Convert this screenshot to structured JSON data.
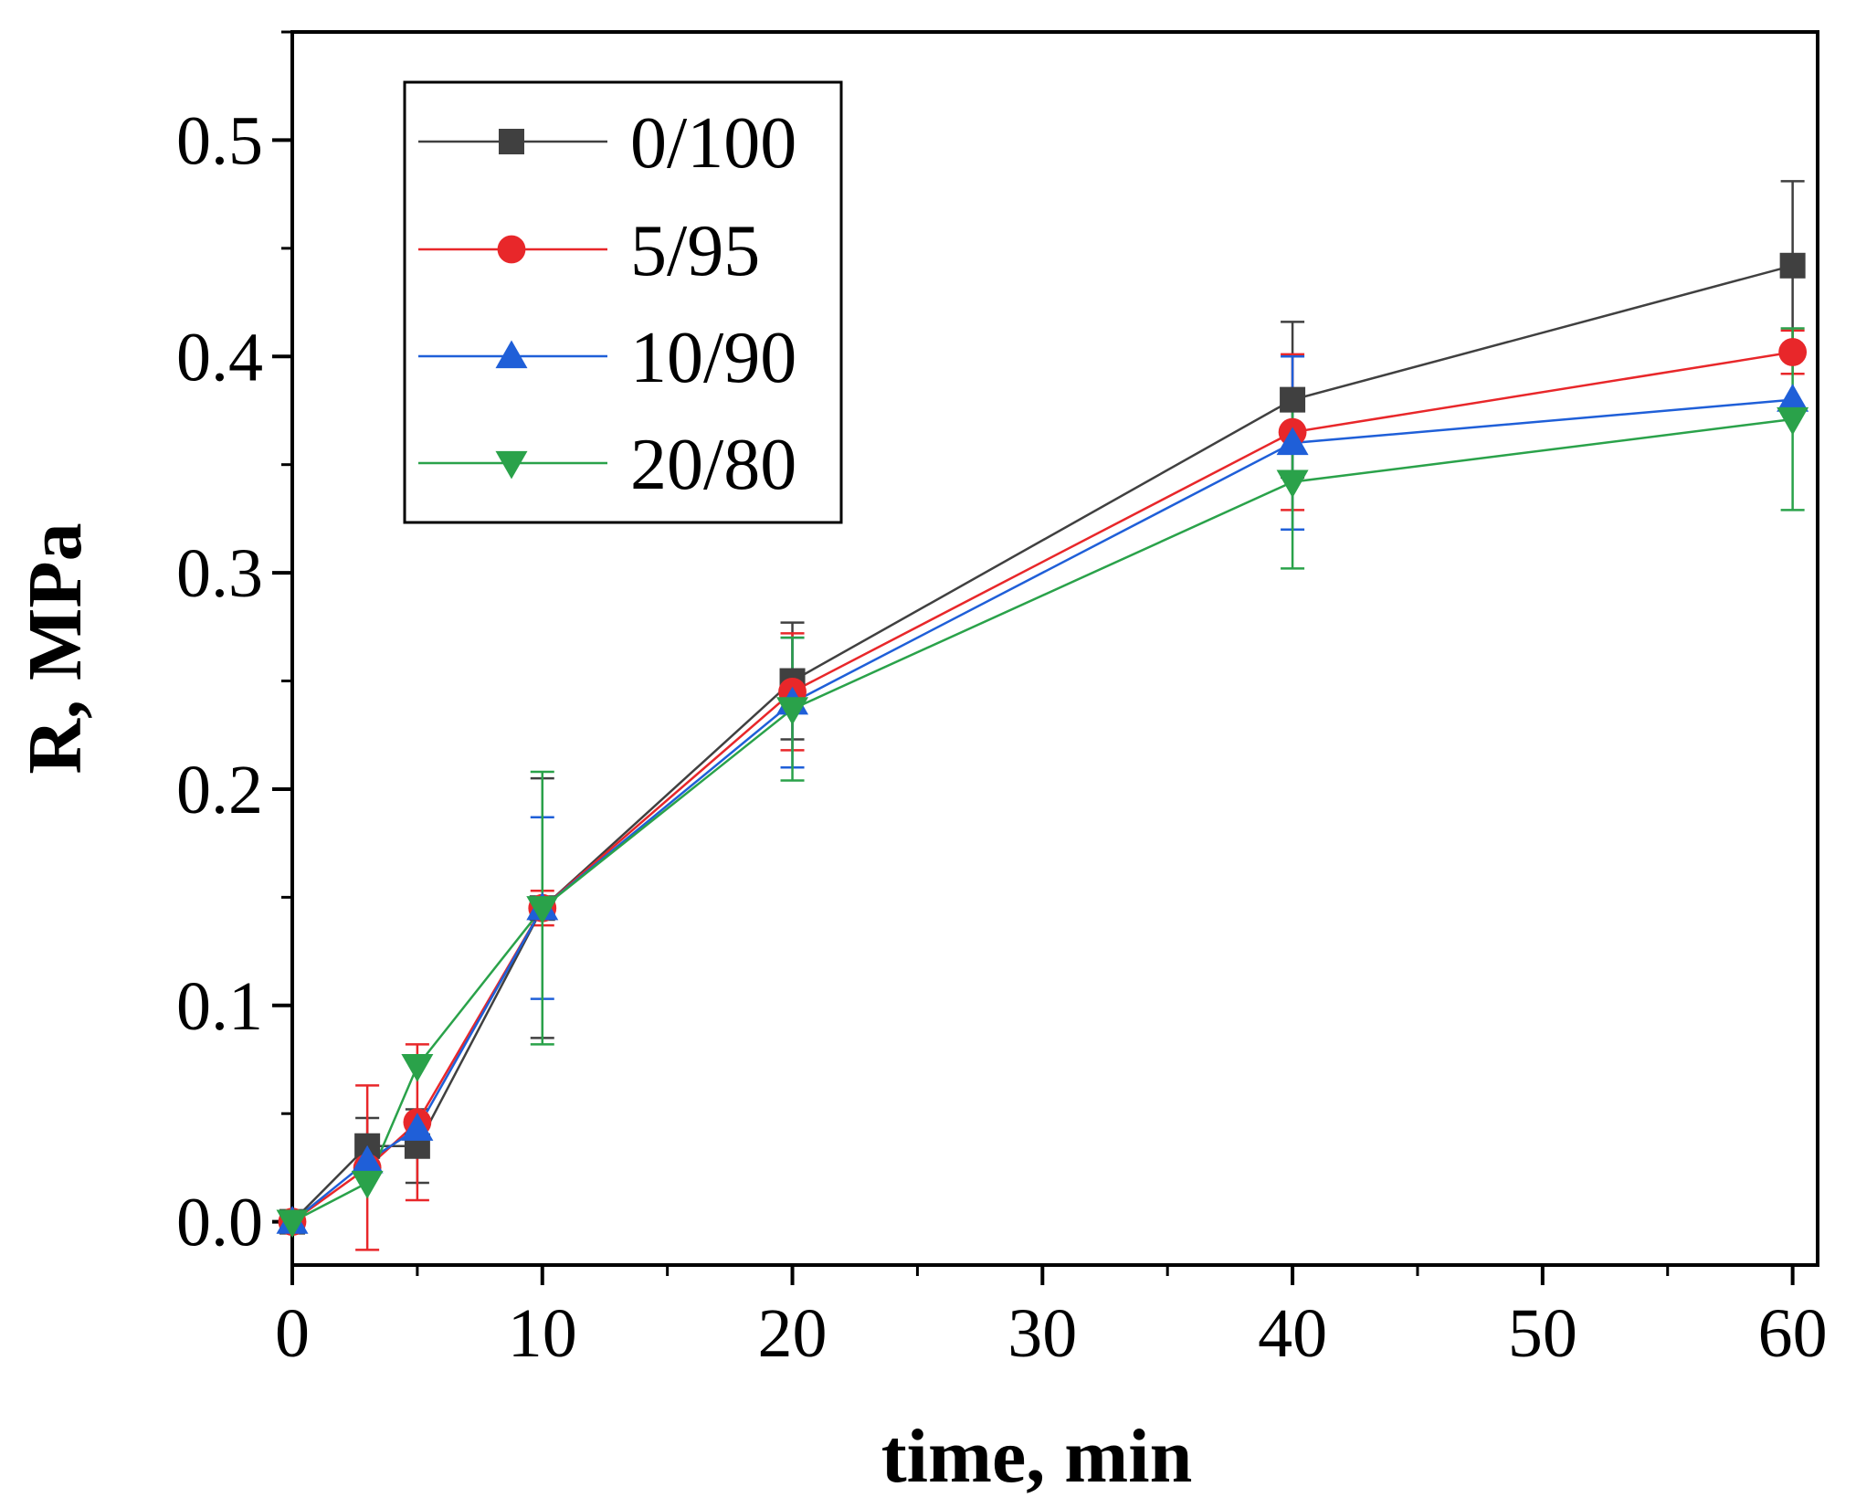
{
  "chart_data": {
    "type": "line",
    "title": "",
    "xlabel": "time, min",
    "ylabel": "R, MPa",
    "xlim": [
      0,
      61
    ],
    "ylim": [
      -0.02,
      0.55
    ],
    "xticks": [
      0,
      10,
      20,
      30,
      40,
      50,
      60
    ],
    "xtick_labels": [
      "0",
      "10",
      "20",
      "30",
      "40",
      "50",
      "60"
    ],
    "yticks": [
      0.0,
      0.1,
      0.2,
      0.3,
      0.4,
      0.5
    ],
    "ytick_labels": [
      "0.0",
      "0.1",
      "0.2",
      "0.3",
      "0.4",
      "0.5"
    ],
    "legend_position": "top-left",
    "grid": false,
    "x": [
      0,
      3,
      5,
      10,
      20,
      40,
      60
    ],
    "series": [
      {
        "name": "0/100",
        "marker": "square",
        "color": "#404040",
        "values": [
          0.0,
          0.035,
          0.035,
          0.145,
          0.25,
          0.38,
          0.442
        ],
        "errors": [
          0.0,
          0.013,
          0.017,
          0.06,
          0.027,
          0.036,
          0.039
        ]
      },
      {
        "name": "5/95",
        "marker": "circle",
        "color": "#e8272a",
        "values": [
          0.0,
          0.025,
          0.046,
          0.145,
          0.245,
          0.365,
          0.402
        ],
        "errors": [
          0.0,
          0.038,
          0.036,
          0.008,
          0.027,
          0.036,
          0.01
        ]
      },
      {
        "name": "10/90",
        "marker": "triangle-up",
        "color": "#1f5fd8",
        "values": [
          0.0,
          0.028,
          0.043,
          0.145,
          0.24,
          0.36,
          0.38
        ],
        "errors": [
          0.0,
          0.0,
          0.0,
          0.042,
          0.03,
          0.04,
          0.0
        ]
      },
      {
        "name": "20/80",
        "marker": "triangle-down",
        "color": "#2aa24a",
        "values": [
          0.0,
          0.018,
          0.072,
          0.145,
          0.237,
          0.342,
          0.371
        ],
        "errors": [
          0.0,
          0.0,
          0.0,
          0.063,
          0.033,
          0.04,
          0.042
        ]
      }
    ]
  }
}
